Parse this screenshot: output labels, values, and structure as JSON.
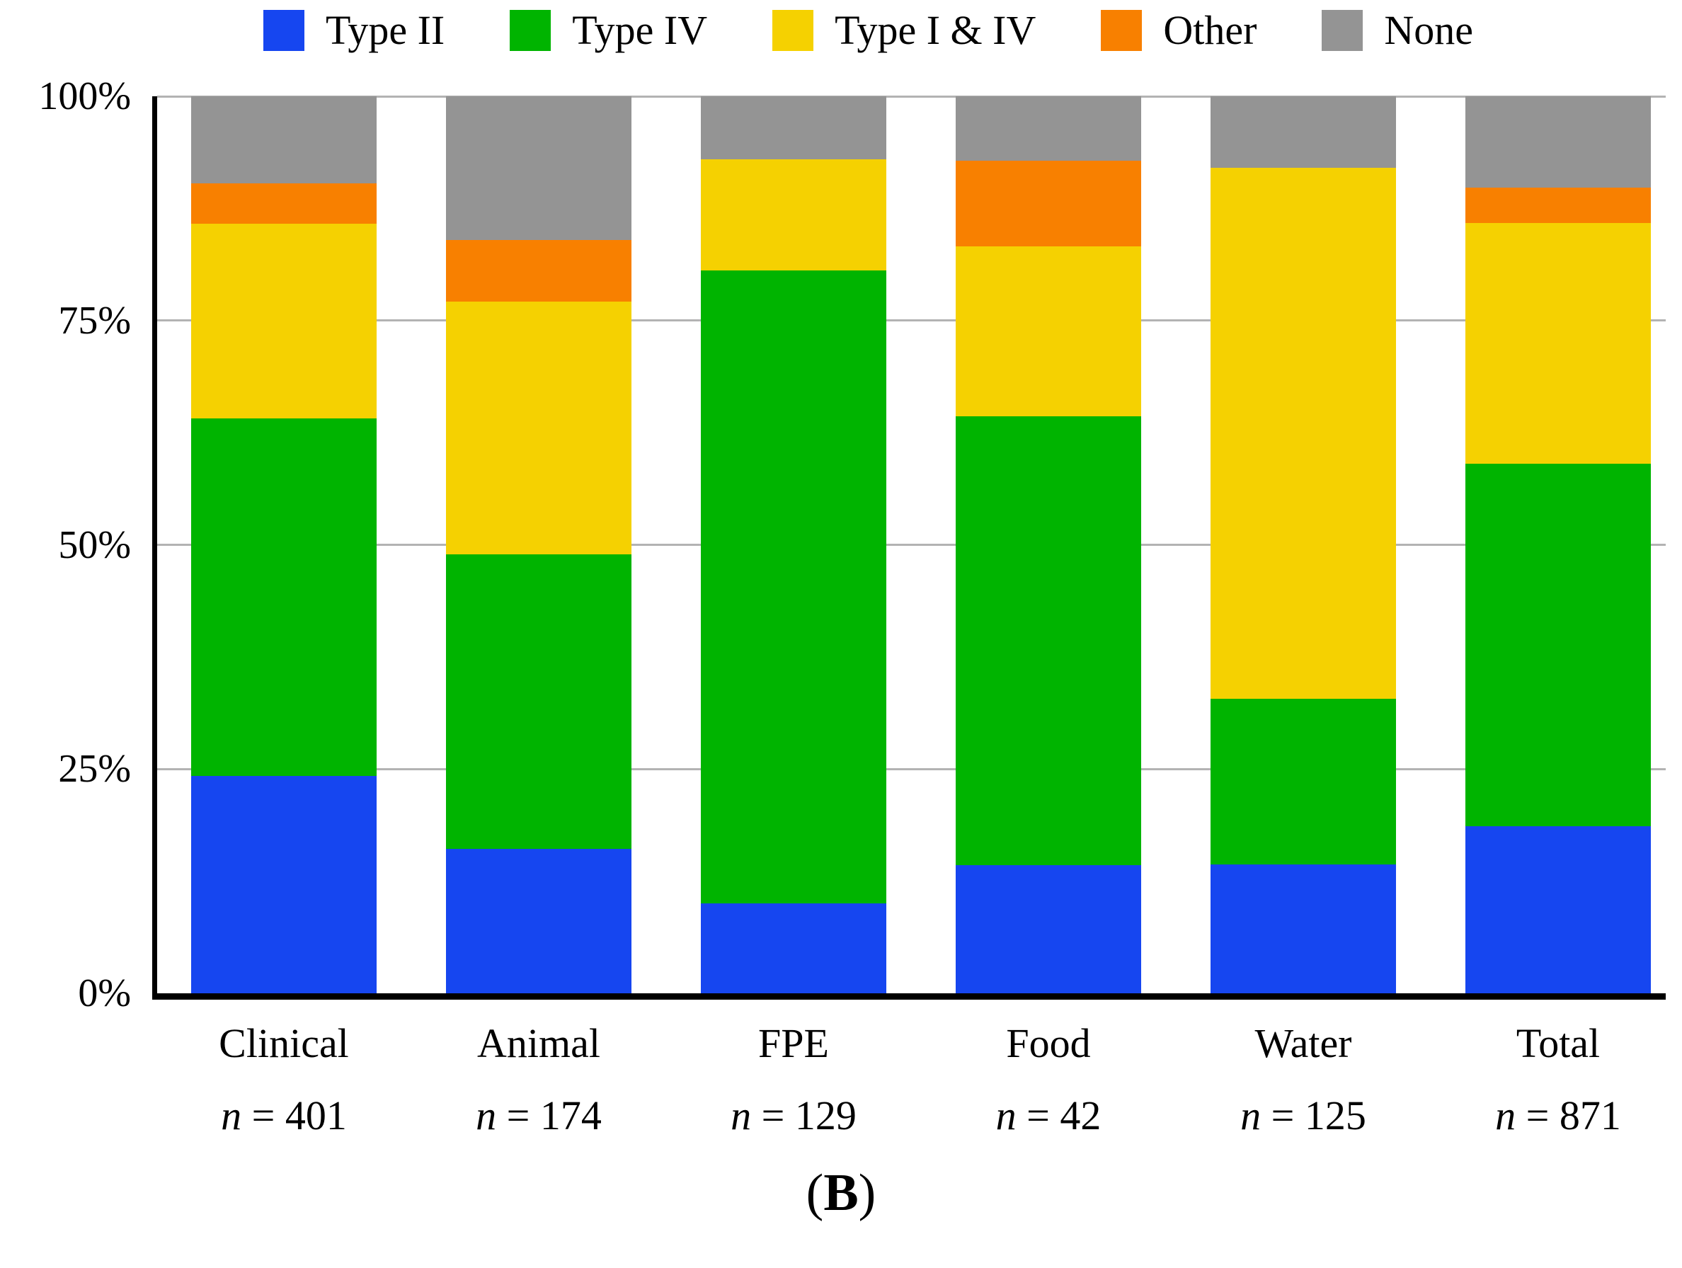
{
  "figure": {
    "panel_label_open": "(",
    "panel_label": "B",
    "panel_label_close": ")"
  },
  "axes": {
    "yticks": [
      {
        "label": "100%",
        "percent": 100
      },
      {
        "label": "75%",
        "percent": 75
      },
      {
        "label": "50%",
        "percent": 50
      },
      {
        "label": "25%",
        "percent": 25
      },
      {
        "label": "0%",
        "percent": 0
      }
    ]
  },
  "chart_data": {
    "type": "bar",
    "stacked": true,
    "percent_stacked": true,
    "grid": true,
    "legend_position": "top",
    "ylim": [
      0,
      100
    ],
    "n_symbol": "n",
    "n_separator": " = ",
    "categories": [
      "Clinical",
      "Animal",
      "FPE",
      "Food",
      "Water",
      "Total"
    ],
    "sample_sizes": [
      "401",
      "174",
      "129",
      "42",
      "125",
      "871"
    ],
    "series": [
      {
        "name": "Type II",
        "color": "#1646f0",
        "values": [
          24.2,
          16.1,
          10.0,
          14.3,
          14.4,
          18.6
        ]
      },
      {
        "name": "Type IV",
        "color": "#00b400",
        "values": [
          39.9,
          32.8,
          70.6,
          50.0,
          18.4,
          40.4
        ]
      },
      {
        "name": "Type I & IV",
        "color": "#f5d101",
        "values": [
          21.7,
          28.2,
          12.4,
          19.0,
          59.2,
          26.9
        ]
      },
      {
        "name": "Other",
        "color": "#f88000",
        "values": [
          4.5,
          6.9,
          0.0,
          9.5,
          0.0,
          3.9
        ]
      },
      {
        "name": "None",
        "color": "#949494",
        "values": [
          9.7,
          16.0,
          7.0,
          7.2,
          8.0,
          10.2
        ]
      }
    ],
    "gridline_color": "#b3b3b3",
    "axis_color": "#000000"
  }
}
